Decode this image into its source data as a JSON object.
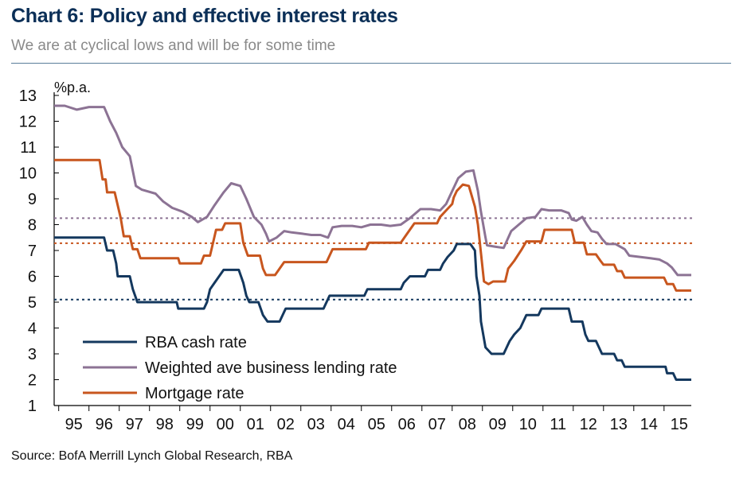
{
  "header": {
    "title": "Chart 6: Policy and effective interest rates",
    "subtitle": "We are at cyclical lows and will be for some time"
  },
  "footer": {
    "source": "Source: BofA Merrill Lynch Global Research, RBA"
  },
  "colors": {
    "title": "#0b2f57",
    "cash": "#14385e",
    "lending": "#8c7394",
    "mortgage": "#c8561e",
    "rule": "#5a7d9a"
  },
  "chart_data": {
    "type": "line",
    "ylabel": "%p.a.",
    "ylim": [
      1,
      13
    ],
    "yticks": [
      1,
      2,
      3,
      4,
      5,
      6,
      7,
      8,
      9,
      10,
      11,
      12,
      13
    ],
    "xlim": [
      1994.85,
      2015.9
    ],
    "xticks": [
      "95",
      "96",
      "97",
      "98",
      "99",
      "00",
      "01",
      "02",
      "03",
      "04",
      "05",
      "06",
      "07",
      "08",
      "09",
      "10",
      "11",
      "12",
      "13",
      "14",
      "15"
    ],
    "legend_position": "bottom-left",
    "grid": false,
    "reference_lines": [
      {
        "series": "Weighted ave business lending rate",
        "value": 8.25,
        "style": "dotted"
      },
      {
        "series": "Mortgage rate",
        "value": 7.28,
        "style": "dotted"
      },
      {
        "series": "RBA cash rate",
        "value": 5.1,
        "style": "dotted"
      }
    ],
    "series": [
      {
        "name": "RBA cash rate",
        "points": [
          [
            1994.85,
            7.5
          ],
          [
            1996.5,
            7.5
          ],
          [
            1996.6,
            7.0
          ],
          [
            1996.8,
            7.0
          ],
          [
            1996.9,
            6.5
          ],
          [
            1996.95,
            6.0
          ],
          [
            1997.35,
            6.0
          ],
          [
            1997.45,
            5.5
          ],
          [
            1997.6,
            5.0
          ],
          [
            1998.9,
            5.0
          ],
          [
            1998.95,
            4.75
          ],
          [
            1999.8,
            4.75
          ],
          [
            1999.9,
            5.0
          ],
          [
            2000.0,
            5.5
          ],
          [
            2000.15,
            5.75
          ],
          [
            2000.3,
            6.0
          ],
          [
            2000.45,
            6.25
          ],
          [
            2000.95,
            6.25
          ],
          [
            2001.1,
            5.75
          ],
          [
            2001.2,
            5.25
          ],
          [
            2001.3,
            5.0
          ],
          [
            2001.6,
            5.0
          ],
          [
            2001.75,
            4.5
          ],
          [
            2001.9,
            4.25
          ],
          [
            2002.3,
            4.25
          ],
          [
            2002.4,
            4.5
          ],
          [
            2002.5,
            4.75
          ],
          [
            2003.75,
            4.75
          ],
          [
            2003.85,
            5.0
          ],
          [
            2003.95,
            5.25
          ],
          [
            2005.1,
            5.25
          ],
          [
            2005.2,
            5.5
          ],
          [
            2006.3,
            5.5
          ],
          [
            2006.4,
            5.75
          ],
          [
            2006.6,
            6.0
          ],
          [
            2007.1,
            6.0
          ],
          [
            2007.2,
            6.25
          ],
          [
            2007.6,
            6.25
          ],
          [
            2007.7,
            6.5
          ],
          [
            2007.85,
            6.75
          ],
          [
            2008.05,
            7.0
          ],
          [
            2008.15,
            7.25
          ],
          [
            2008.6,
            7.25
          ],
          [
            2008.75,
            7.0
          ],
          [
            2008.8,
            6.0
          ],
          [
            2008.9,
            5.25
          ],
          [
            2008.95,
            4.25
          ],
          [
            2009.1,
            3.25
          ],
          [
            2009.3,
            3.0
          ],
          [
            2009.7,
            3.0
          ],
          [
            2009.8,
            3.25
          ],
          [
            2009.9,
            3.5
          ],
          [
            2010.05,
            3.75
          ],
          [
            2010.25,
            4.0
          ],
          [
            2010.35,
            4.25
          ],
          [
            2010.45,
            4.5
          ],
          [
            2010.85,
            4.5
          ],
          [
            2010.95,
            4.75
          ],
          [
            2011.85,
            4.75
          ],
          [
            2011.9,
            4.5
          ],
          [
            2011.95,
            4.25
          ],
          [
            2012.3,
            4.25
          ],
          [
            2012.4,
            3.75
          ],
          [
            2012.5,
            3.5
          ],
          [
            2012.75,
            3.5
          ],
          [
            2012.85,
            3.25
          ],
          [
            2012.95,
            3.0
          ],
          [
            2013.35,
            3.0
          ],
          [
            2013.45,
            2.75
          ],
          [
            2013.6,
            2.75
          ],
          [
            2013.7,
            2.5
          ],
          [
            2015.05,
            2.5
          ],
          [
            2015.1,
            2.25
          ],
          [
            2015.3,
            2.25
          ],
          [
            2015.4,
            2.0
          ],
          [
            2015.9,
            2.0
          ]
        ]
      },
      {
        "name": "Weighted ave business lending rate",
        "points": [
          [
            1994.85,
            12.6
          ],
          [
            1995.2,
            12.6
          ],
          [
            1995.6,
            12.45
          ],
          [
            1996.0,
            12.55
          ],
          [
            1996.5,
            12.55
          ],
          [
            1996.7,
            12.0
          ],
          [
            1996.9,
            11.55
          ],
          [
            1997.1,
            11.0
          ],
          [
            1997.35,
            10.65
          ],
          [
            1997.55,
            9.5
          ],
          [
            1997.75,
            9.35
          ],
          [
            1998.2,
            9.2
          ],
          [
            1998.45,
            8.9
          ],
          [
            1998.75,
            8.65
          ],
          [
            1999.1,
            8.5
          ],
          [
            1999.4,
            8.3
          ],
          [
            1999.6,
            8.1
          ],
          [
            1999.9,
            8.3
          ],
          [
            2000.15,
            8.75
          ],
          [
            2000.45,
            9.25
          ],
          [
            2000.7,
            9.6
          ],
          [
            2001.0,
            9.5
          ],
          [
            2001.2,
            9.0
          ],
          [
            2001.45,
            8.3
          ],
          [
            2001.7,
            8.0
          ],
          [
            2001.85,
            7.65
          ],
          [
            2001.95,
            7.35
          ],
          [
            2002.2,
            7.5
          ],
          [
            2002.45,
            7.75
          ],
          [
            2002.7,
            7.7
          ],
          [
            2003.05,
            7.65
          ],
          [
            2003.35,
            7.6
          ],
          [
            2003.65,
            7.6
          ],
          [
            2003.9,
            7.5
          ],
          [
            2004.05,
            7.9
          ],
          [
            2004.35,
            7.95
          ],
          [
            2004.7,
            7.95
          ],
          [
            2005.0,
            7.9
          ],
          [
            2005.3,
            8.0
          ],
          [
            2005.65,
            8.0
          ],
          [
            2005.95,
            7.95
          ],
          [
            2006.3,
            8.0
          ],
          [
            2006.6,
            8.25
          ],
          [
            2006.95,
            8.6
          ],
          [
            2007.3,
            8.6
          ],
          [
            2007.6,
            8.55
          ],
          [
            2007.8,
            8.8
          ],
          [
            2008.0,
            9.3
          ],
          [
            2008.2,
            9.8
          ],
          [
            2008.45,
            10.05
          ],
          [
            2008.7,
            10.1
          ],
          [
            2008.85,
            9.3
          ],
          [
            2008.95,
            8.5
          ],
          [
            2009.1,
            7.5
          ],
          [
            2009.15,
            7.2
          ],
          [
            2009.4,
            7.15
          ],
          [
            2009.7,
            7.1
          ],
          [
            2009.95,
            7.75
          ],
          [
            2010.2,
            8.0
          ],
          [
            2010.45,
            8.25
          ],
          [
            2010.75,
            8.3
          ],
          [
            2010.95,
            8.6
          ],
          [
            2011.2,
            8.55
          ],
          [
            2011.6,
            8.55
          ],
          [
            2011.85,
            8.45
          ],
          [
            2011.95,
            8.2
          ],
          [
            2012.1,
            8.15
          ],
          [
            2012.3,
            8.3
          ],
          [
            2012.45,
            8.0
          ],
          [
            2012.6,
            7.75
          ],
          [
            2012.8,
            7.7
          ],
          [
            2012.95,
            7.45
          ],
          [
            2013.1,
            7.25
          ],
          [
            2013.4,
            7.25
          ],
          [
            2013.7,
            7.05
          ],
          [
            2013.85,
            6.8
          ],
          [
            2014.2,
            6.75
          ],
          [
            2014.55,
            6.7
          ],
          [
            2014.85,
            6.65
          ],
          [
            2015.1,
            6.5
          ],
          [
            2015.25,
            6.35
          ],
          [
            2015.45,
            6.05
          ],
          [
            2015.9,
            6.05
          ]
        ]
      },
      {
        "name": "Mortgage rate",
        "points": [
          [
            1994.85,
            10.5
          ],
          [
            1996.35,
            10.5
          ],
          [
            1996.45,
            9.75
          ],
          [
            1996.55,
            9.75
          ],
          [
            1996.6,
            9.25
          ],
          [
            1996.85,
            9.25
          ],
          [
            1996.95,
            8.75
          ],
          [
            1997.05,
            8.25
          ],
          [
            1997.15,
            7.55
          ],
          [
            1997.35,
            7.55
          ],
          [
            1997.45,
            7.05
          ],
          [
            1997.6,
            7.05
          ],
          [
            1997.7,
            6.7
          ],
          [
            1998.95,
            6.7
          ],
          [
            1999.0,
            6.5
          ],
          [
            1999.7,
            6.5
          ],
          [
            1999.8,
            6.8
          ],
          [
            2000.0,
            6.8
          ],
          [
            2000.1,
            7.3
          ],
          [
            2000.2,
            7.8
          ],
          [
            2000.4,
            7.8
          ],
          [
            2000.5,
            8.05
          ],
          [
            2001.0,
            8.05
          ],
          [
            2001.1,
            7.3
          ],
          [
            2001.25,
            6.8
          ],
          [
            2001.65,
            6.8
          ],
          [
            2001.75,
            6.3
          ],
          [
            2001.85,
            6.05
          ],
          [
            2002.15,
            6.05
          ],
          [
            2002.3,
            6.3
          ],
          [
            2002.45,
            6.55
          ],
          [
            2003.85,
            6.55
          ],
          [
            2003.95,
            6.8
          ],
          [
            2004.05,
            7.05
          ],
          [
            2005.15,
            7.05
          ],
          [
            2005.25,
            7.3
          ],
          [
            2006.3,
            7.3
          ],
          [
            2006.45,
            7.55
          ],
          [
            2006.6,
            7.8
          ],
          [
            2006.75,
            8.05
          ],
          [
            2007.5,
            8.05
          ],
          [
            2007.6,
            8.3
          ],
          [
            2007.8,
            8.55
          ],
          [
            2008.0,
            8.8
          ],
          [
            2008.05,
            9.05
          ],
          [
            2008.15,
            9.3
          ],
          [
            2008.35,
            9.55
          ],
          [
            2008.55,
            9.5
          ],
          [
            2008.75,
            8.7
          ],
          [
            2008.85,
            8.0
          ],
          [
            2008.95,
            6.9
          ],
          [
            2009.05,
            5.8
          ],
          [
            2009.2,
            5.7
          ],
          [
            2009.35,
            5.8
          ],
          [
            2009.75,
            5.8
          ],
          [
            2009.85,
            6.3
          ],
          [
            2010.05,
            6.6
          ],
          [
            2010.3,
            7.05
          ],
          [
            2010.45,
            7.35
          ],
          [
            2010.95,
            7.35
          ],
          [
            2011.05,
            7.8
          ],
          [
            2011.95,
            7.8
          ],
          [
            2012.05,
            7.3
          ],
          [
            2012.35,
            7.3
          ],
          [
            2012.45,
            6.85
          ],
          [
            2012.75,
            6.85
          ],
          [
            2012.9,
            6.6
          ],
          [
            2013.0,
            6.45
          ],
          [
            2013.35,
            6.45
          ],
          [
            2013.45,
            6.2
          ],
          [
            2013.6,
            6.2
          ],
          [
            2013.7,
            5.95
          ],
          [
            2015.0,
            5.95
          ],
          [
            2015.1,
            5.7
          ],
          [
            2015.3,
            5.7
          ],
          [
            2015.4,
            5.45
          ],
          [
            2015.9,
            5.45
          ]
        ]
      }
    ]
  }
}
